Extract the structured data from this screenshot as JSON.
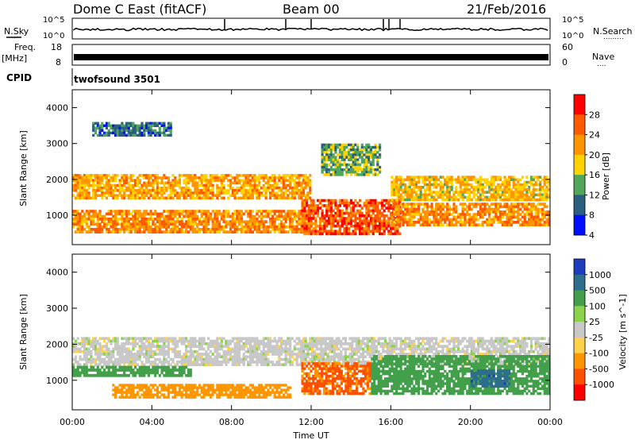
{
  "header": {
    "station": "Dome C East (fitACF)",
    "beam": "Beam 00",
    "date": "21/Feb/2016"
  },
  "top_panels": {
    "nsky_label": "N.Sky",
    "nsearch_label": "N.Search",
    "nsearch_dots": ".........",
    "freq_label_line1": "Freq.",
    "freq_label_line2": "[MHz]",
    "nave_label": "Nave",
    "nave_dots": "....",
    "cpid_label": "CPID",
    "cpid_value": "twofsound 3501",
    "noise_ticks_left": [
      "10^5",
      "10^0"
    ],
    "noise_ticks_right": [
      "10^5",
      "10^0"
    ],
    "freq_ticks": [
      "18",
      "8"
    ],
    "nave_ticks": [
      "60",
      "0"
    ]
  },
  "chart_data": [
    {
      "type": "heatmap",
      "panel": "power",
      "ylabel": "Slant Range [km]",
      "yticks": [
        "4000",
        "3000",
        "2000",
        "1000"
      ],
      "ylim": [
        180,
        4500
      ],
      "x_range_hours": [
        0,
        24
      ],
      "colorbar_label": "Power [dB]",
      "colorbar_ticks": [
        "28",
        "24",
        "20",
        "16",
        "12",
        "8",
        "4"
      ],
      "colorbar_colors": [
        "#ff0000",
        "#ff5a00",
        "#ff9600",
        "#ffd200",
        "#52a65c",
        "#2a5f7f",
        "#0010ff"
      ],
      "regions": [
        {
          "t": [
            0.0,
            12.0
          ],
          "r": [
            1450,
            2150
          ],
          "value": 22
        },
        {
          "t": [
            0.0,
            12.0
          ],
          "r": [
            500,
            1150
          ],
          "value": 24
        },
        {
          "t": [
            11.5,
            16.5
          ],
          "r": [
            450,
            1450
          ],
          "value": 28
        },
        {
          "t": [
            16.0,
            24.0
          ],
          "r": [
            1400,
            2100
          ],
          "value": 20
        },
        {
          "t": [
            16.0,
            24.0
          ],
          "r": [
            700,
            1350
          ],
          "value": 24
        },
        {
          "t": [
            12.5,
            15.5
          ],
          "r": [
            2100,
            3000
          ],
          "value": 14
        },
        {
          "t": [
            1.0,
            5.0
          ],
          "r": [
            3200,
            3600
          ],
          "value": 10
        }
      ]
    },
    {
      "type": "heatmap",
      "panel": "velocity",
      "xlabel": "Time UT",
      "xticks": [
        "00:00",
        "04:00",
        "08:00",
        "12:00",
        "16:00",
        "20:00",
        "00:00"
      ],
      "ylabel": "Slant Range [km]",
      "yticks": [
        "4000",
        "3000",
        "2000",
        "1000"
      ],
      "ylim": [
        180,
        4500
      ],
      "x_range_hours": [
        0,
        24
      ],
      "colorbar_label": "Velocity [m s^-1]",
      "colorbar_ticks": [
        "1000",
        "500",
        "100",
        "25",
        "-25",
        "-100",
        "-500",
        "-1000"
      ],
      "colorbar_colors": [
        "#1e3cbe",
        "#2c6e8c",
        "#43a04a",
        "#8cd24a",
        "#c8c8c8",
        "#ffd24a",
        "#ff9600",
        "#ff5000",
        "#ff0000"
      ],
      "regions": [
        {
          "t": [
            0.0,
            24.0
          ],
          "r": [
            1400,
            2200
          ],
          "value": 0
        },
        {
          "t": [
            0.0,
            6.0
          ],
          "r": [
            1100,
            1400
          ],
          "value": 150
        },
        {
          "t": [
            2.0,
            11.0
          ],
          "r": [
            500,
            900
          ],
          "value": -200
        },
        {
          "t": [
            11.5,
            15.0
          ],
          "r": [
            600,
            1500
          ],
          "value": -600
        },
        {
          "t": [
            15.0,
            24.0
          ],
          "r": [
            600,
            1700
          ],
          "value": 300
        },
        {
          "t": [
            20.0,
            22.0
          ],
          "r": [
            800,
            1300
          ],
          "value": 800
        }
      ]
    }
  ]
}
